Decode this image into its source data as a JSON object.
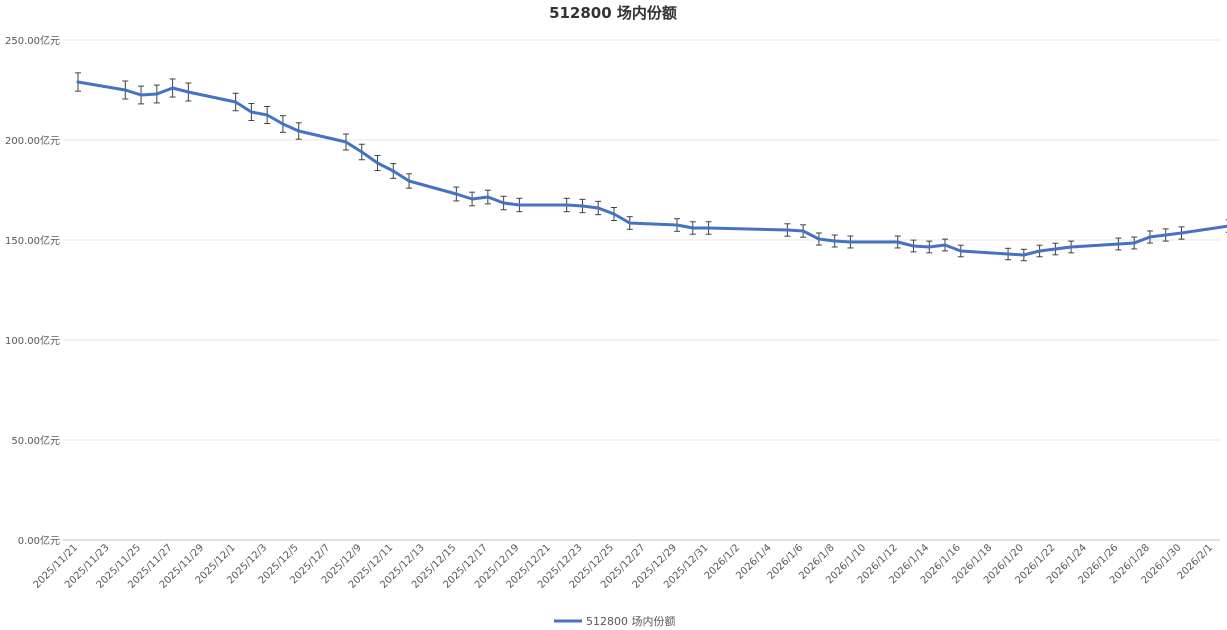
{
  "chart_data": {
    "type": "line",
    "title": "512800 场内份额",
    "ylim": [
      0,
      250
    ],
    "y_ticks": [
      0,
      50,
      100,
      150,
      200,
      250
    ],
    "y_tick_labels": [
      "0.00亿元",
      "50.00亿元",
      "100.00亿元",
      "150.00亿元",
      "200.00亿元",
      "250.00亿元"
    ],
    "x_tick_labels": [
      "2025/11/21",
      "2025/11/23",
      "2025/11/25",
      "2025/11/27",
      "2025/11/29",
      "2025/12/1",
      "2025/12/3",
      "2025/12/5",
      "2025/12/7",
      "2025/12/9",
      "2025/12/11",
      "2025/12/13",
      "2025/12/15",
      "2025/12/17",
      "2025/12/19",
      "2025/12/21",
      "2025/12/23",
      "2025/12/25",
      "2025/12/27",
      "2025/12/29",
      "2025/12/31",
      "2026/1/2",
      "2026/1/4",
      "2026/1/6",
      "2026/1/8",
      "2026/1/10",
      "2026/1/12",
      "2026/1/14",
      "2026/1/16",
      "2026/1/18",
      "2026/1/20",
      "2026/1/22",
      "2026/1/24",
      "2026/1/26",
      "2026/1/28",
      "2026/1/30",
      "2026/2/1"
    ],
    "legend_position": "bottom",
    "grid": true,
    "error_bars": true,
    "series": [
      {
        "name": "512800 场内份额",
        "color": "#4472C4",
        "x": [
          "2025/11/21",
          "2025/11/24",
          "2025/11/25",
          "2025/11/26",
          "2025/11/27",
          "2025/11/28",
          "2025/12/1",
          "2025/12/2",
          "2025/12/3",
          "2025/12/4",
          "2025/12/5",
          "2025/12/8",
          "2025/12/9",
          "2025/12/10",
          "2025/12/11",
          "2025/12/12",
          "2025/12/15",
          "2025/12/16",
          "2025/12/17",
          "2025/12/18",
          "2025/12/19",
          "2025/12/22",
          "2025/12/23",
          "2025/12/24",
          "2025/12/25",
          "2025/12/26",
          "2025/12/29",
          "2025/12/30",
          "2025/12/31",
          "2026/1/5",
          "2026/1/6",
          "2026/1/7",
          "2026/1/8",
          "2026/1/9",
          "2026/1/12",
          "2026/1/13",
          "2026/1/14",
          "2026/1/15",
          "2026/1/16",
          "2026/1/19",
          "2026/1/20",
          "2026/1/21",
          "2026/1/22",
          "2026/1/23",
          "2026/1/26",
          "2026/1/27",
          "2026/1/28",
          "2026/1/29",
          "2026/1/30",
          "2026/2/2"
        ],
        "values": [
          229,
          225,
          222.5,
          223,
          226,
          224,
          219,
          214,
          212.5,
          208,
          204.5,
          199,
          194,
          188.5,
          184.5,
          179.5,
          173,
          170.5,
          171.5,
          168.5,
          167.5,
          167.5,
          167,
          166,
          163,
          158.5,
          157.5,
          156,
          156,
          155,
          154.5,
          150.5,
          149.5,
          149,
          149,
          147,
          146.5,
          147.5,
          144.5,
          143,
          142.5,
          144.5,
          145.5,
          146.5,
          148,
          148.5,
          151.5,
          152.5,
          153.5,
          157
        ]
      }
    ]
  }
}
